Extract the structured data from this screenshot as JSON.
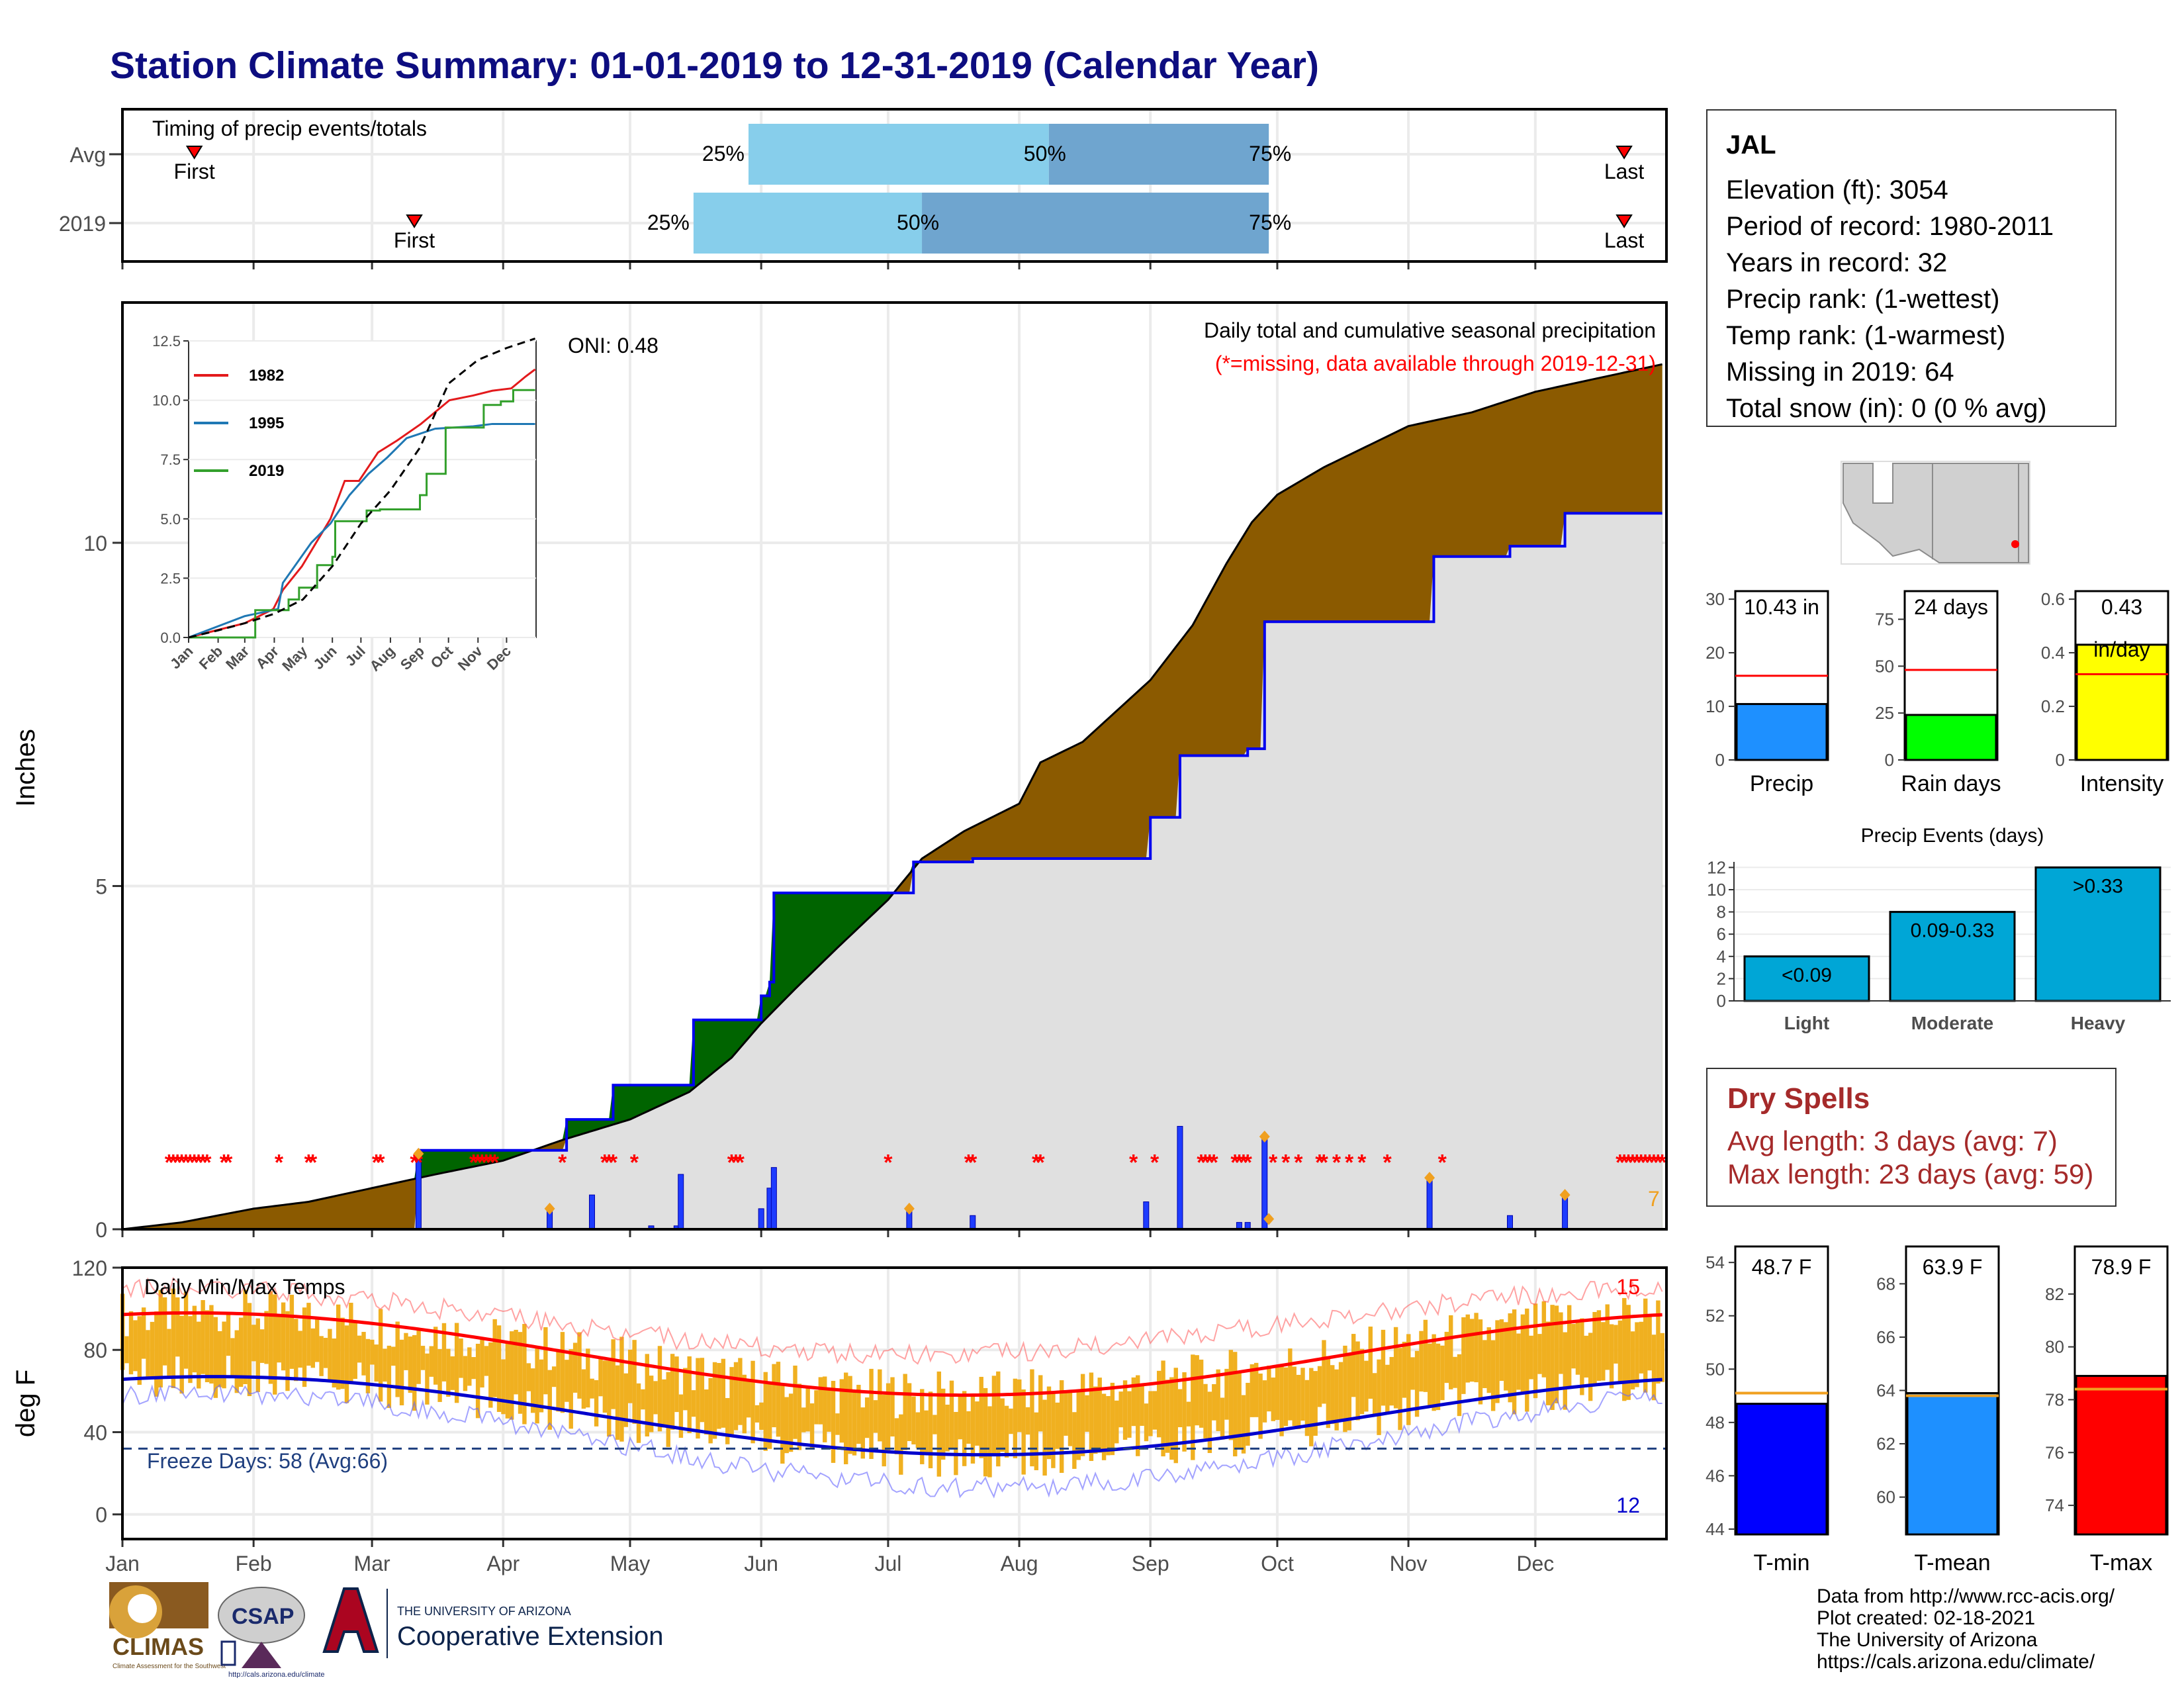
{
  "page_title": "Station Climate Summary: 01-01-2019 to 12-31-2019 (Calendar Year)",
  "station": {
    "name": "JAL",
    "rows": [
      "Elevation (ft): 3054",
      "Period of record: 1980-2011",
      "Years in record: 32",
      "Precip rank:  (1-wettest)",
      "Temp rank:  (1-warmest)",
      "Missing in 2019: 64",
      "Total snow (in): 0 (0 % avg)"
    ]
  },
  "dry_spells": {
    "title": "Dry Spells",
    "avg_length": "Avg length: 3 days (avg: 7)",
    "max_length": "Max length: 23 days (avg: 59)"
  },
  "credits": [
    "Data from http://www.rcc-acis.org/",
    "Plot created: 02-18-2021",
    "The University of Arizona",
    "https://cals.arizona.edu/climate/"
  ],
  "logos": {
    "climas": "CLIMAS",
    "climas_sub": "Climate Assessment for the Southwest",
    "csap": "CSAP",
    "csap_url": "http://cals.arizona.edu/climate",
    "ua_line1": "THE UNIVERSITY OF ARIZONA",
    "ua_line2": "Cooperative Extension"
  },
  "colors": {
    "title": "#0d0d80",
    "precip_surplus": "#006400",
    "precip_deficit": "#8b5a00",
    "avg_cumulative": "#e0e0e0",
    "daily_precip_bar": "#1e3cff",
    "missing_marker": "#ff0000",
    "temp_bar": "#f0b020",
    "avg_max_line": "#ff0000",
    "avg_min_line": "#0000cc",
    "tmin": "#0000ff",
    "tmean": "#1e90ff",
    "tmax": "#ff0000",
    "precip_fill": "#1e90ff",
    "raindays_fill": "#00ff00",
    "intensity_fill": "#ffff00",
    "events_fill": "#00a6d6",
    "timing_light": "#87ceeb",
    "timing_dark": "#6fa5cf",
    "dry_spells": "#a52a2a"
  },
  "chart_data": [
    {
      "id": "timing",
      "type": "bar",
      "title": "Timing of precip events/totals",
      "x_axis": "day of year",
      "rows": [
        {
          "label": "Avg",
          "first_doy": 18,
          "q25_doy": 149,
          "q50_doy": 220,
          "q75_doy": 272,
          "last_doy": 356,
          "first_label": "First",
          "last_label": "Last",
          "q25_label": "25%",
          "q50_label": "50%",
          "q75_label": "75%"
        },
        {
          "label": "2019",
          "first_doy": 70,
          "q25_doy": 136,
          "q50_doy": 190,
          "q75_doy": 272,
          "last_doy": 356,
          "first_label": "First",
          "last_label": "Last",
          "q25_label": "25%",
          "q50_label": "50%",
          "q75_label": "75%"
        }
      ]
    },
    {
      "id": "precip_main",
      "type": "area",
      "title": "Daily total and cumulative seasonal precipitation",
      "subtitle": "(*=missing, data available through 2019-12-31)",
      "annotation": "ONI: 0.48",
      "ylabel": "Inches",
      "ylim": [
        0,
        13.5
      ],
      "yticks": [
        0,
        5,
        10
      ],
      "months": [
        "Jan",
        "Feb",
        "Mar",
        "Apr",
        "May",
        "Jun",
        "Jul",
        "Aug",
        "Sep",
        "Oct",
        "Nov",
        "Dec"
      ],
      "month_start_doy": [
        1,
        32,
        60,
        91,
        121,
        152,
        182,
        213,
        244,
        274,
        305,
        335
      ],
      "avg_cumulative": [
        [
          1,
          0
        ],
        [
          15,
          0.1
        ],
        [
          32,
          0.3
        ],
        [
          45,
          0.4
        ],
        [
          60,
          0.6
        ],
        [
          75,
          0.8
        ],
        [
          91,
          1.0
        ],
        [
          105,
          1.3
        ],
        [
          121,
          1.6
        ],
        [
          135,
          2.0
        ],
        [
          145,
          2.5
        ],
        [
          152,
          3.0
        ],
        [
          160,
          3.5
        ],
        [
          170,
          4.1
        ],
        [
          182,
          4.8
        ],
        [
          190,
          5.4
        ],
        [
          200,
          5.8
        ],
        [
          213,
          6.2
        ],
        [
          218,
          6.8
        ],
        [
          228,
          7.1
        ],
        [
          244,
          8.0
        ],
        [
          254,
          8.8
        ],
        [
          262,
          9.7
        ],
        [
          268,
          10.3
        ],
        [
          274,
          10.7
        ],
        [
          285,
          11.1
        ],
        [
          305,
          11.7
        ],
        [
          320,
          11.9
        ],
        [
          335,
          12.2
        ],
        [
          350,
          12.4
        ],
        [
          365,
          12.6
        ]
      ],
      "cumulative_2019": [
        [
          1,
          0
        ],
        [
          70,
          0
        ],
        [
          71,
          1.15
        ],
        [
          105,
          1.15
        ],
        [
          106,
          1.6
        ],
        [
          116,
          1.6
        ],
        [
          117,
          2.1
        ],
        [
          135,
          2.1
        ],
        [
          136,
          3.05
        ],
        [
          151,
          3.05
        ],
        [
          152,
          3.4
        ],
        [
          154,
          3.6
        ],
        [
          155,
          4.9
        ],
        [
          187,
          4.9
        ],
        [
          188,
          5.35
        ],
        [
          201,
          5.35
        ],
        [
          202,
          5.4
        ],
        [
          243,
          5.4
        ],
        [
          244,
          6.0
        ],
        [
          250,
          6.0
        ],
        [
          251,
          6.9
        ],
        [
          266,
          6.9
        ],
        [
          267,
          7.0
        ],
        [
          270,
          7.0
        ],
        [
          271,
          8.85
        ],
        [
          310,
          8.85
        ],
        [
          311,
          9.8
        ],
        [
          328,
          9.8
        ],
        [
          329,
          9.95
        ],
        [
          341,
          9.95
        ],
        [
          342,
          10.43
        ],
        [
          365,
          10.43
        ]
      ],
      "daily_precip": [
        [
          71,
          1.1
        ],
        [
          102,
          0.3
        ],
        [
          112,
          0.5
        ],
        [
          126,
          0.05
        ],
        [
          132,
          0.05
        ],
        [
          133,
          0.8
        ],
        [
          152,
          0.3
        ],
        [
          154,
          0.6
        ],
        [
          155,
          0.9
        ],
        [
          187,
          0.3
        ],
        [
          202,
          0.2
        ],
        [
          243,
          0.4
        ],
        [
          251,
          1.5
        ],
        [
          265,
          0.1
        ],
        [
          267,
          0.1
        ],
        [
          271,
          1.35
        ],
        [
          310,
          0.75
        ],
        [
          329,
          0.2
        ],
        [
          342,
          0.5
        ]
      ],
      "missing_days": [
        12,
        13,
        14,
        15,
        16,
        17,
        18,
        19,
        20,
        21,
        25,
        26,
        38,
        45,
        46,
        61,
        62,
        70,
        71,
        84,
        85,
        86,
        87,
        88,
        89,
        105,
        115,
        116,
        117,
        122,
        145,
        146,
        147,
        182,
        201,
        202,
        217,
        218,
        240,
        245,
        256,
        257,
        258,
        259,
        264,
        265,
        266,
        267,
        273,
        276,
        279,
        284,
        285,
        288,
        291,
        294,
        300,
        313,
        355,
        356,
        357,
        358,
        359,
        360,
        361,
        362,
        363,
        364,
        365
      ],
      "orange_markers": [
        [
          71,
          1.1
        ],
        [
          102,
          0.3
        ],
        [
          187,
          0.3
        ],
        [
          271,
          1.35
        ],
        [
          272,
          0.15
        ],
        [
          310,
          0.75
        ],
        [
          342,
          0.5
        ]
      ],
      "orange_label": "7"
    },
    {
      "id": "precip_inset",
      "type": "line",
      "ylim": [
        0,
        12.5
      ],
      "yticks": [
        0.0,
        2.5,
        5.0,
        7.5,
        10.0,
        12.5
      ],
      "months": [
        "Jan",
        "Feb",
        "Mar",
        "Apr",
        "May",
        "Jun",
        "Jul",
        "Aug",
        "Sep",
        "Oct",
        "Nov",
        "Dec"
      ],
      "series": [
        {
          "name": "1982",
          "color": "#e31a1c",
          "values": [
            [
              1,
              0
            ],
            [
              30,
              0.3
            ],
            [
              60,
              0.6
            ],
            [
              90,
              1.2
            ],
            [
              100,
              2.0
            ],
            [
              120,
              3.0
            ],
            [
              150,
              5.0
            ],
            [
              165,
              6.6
            ],
            [
              180,
              6.6
            ],
            [
              200,
              7.8
            ],
            [
              220,
              8.3
            ],
            [
              245,
              9.0
            ],
            [
              275,
              10.0
            ],
            [
              300,
              10.2
            ],
            [
              320,
              10.4
            ],
            [
              340,
              10.5
            ],
            [
              355,
              11.0
            ],
            [
              365,
              11.3
            ]
          ]
        },
        {
          "name": "1995",
          "color": "#1f78b4",
          "values": [
            [
              1,
              0
            ],
            [
              60,
              0.9
            ],
            [
              95,
              1.2
            ],
            [
              100,
              2.3
            ],
            [
              130,
              4.0
            ],
            [
              150,
              4.8
            ],
            [
              170,
              6.0
            ],
            [
              190,
              6.9
            ],
            [
              210,
              7.6
            ],
            [
              230,
              8.4
            ],
            [
              260,
              8.8
            ],
            [
              300,
              8.9
            ],
            [
              320,
              9.0
            ],
            [
              365,
              9.0
            ]
          ]
        },
        {
          "name": "2019",
          "color": "#33a02c",
          "values": [
            [
              1,
              0
            ],
            [
              70,
              0
            ],
            [
              71,
              1.15
            ],
            [
              105,
              1.15
            ],
            [
              106,
              1.6
            ],
            [
              117,
              2.1
            ],
            [
              136,
              3.05
            ],
            [
              152,
              3.4
            ],
            [
              155,
              4.9
            ],
            [
              188,
              5.35
            ],
            [
              202,
              5.4
            ],
            [
              244,
              6.0
            ],
            [
              251,
              6.9
            ],
            [
              271,
              8.85
            ],
            [
              311,
              9.8
            ],
            [
              329,
              9.95
            ],
            [
              342,
              10.43
            ],
            [
              365,
              10.43
            ]
          ]
        },
        {
          "name": "avg",
          "color": "#000000",
          "dashed": true,
          "values": [
            [
              1,
              0
            ],
            [
              32,
              0.3
            ],
            [
              60,
              0.6
            ],
            [
              91,
              1.0
            ],
            [
              121,
              1.6
            ],
            [
              152,
              3.0
            ],
            [
              182,
              4.8
            ],
            [
              213,
              6.2
            ],
            [
              244,
              8.0
            ],
            [
              274,
              10.7
            ],
            [
              305,
              11.7
            ],
            [
              335,
              12.2
            ],
            [
              365,
              12.6
            ]
          ]
        }
      ]
    },
    {
      "id": "temps",
      "type": "bar",
      "title": "Daily Min/Max Temps",
      "ylabel": "deg F",
      "ylim": [
        -12,
        120
      ],
      "yticks": [
        0,
        40,
        80,
        120
      ],
      "freeze_label": "Freeze Days: 58 (Avg:66)",
      "freeze_line": 32,
      "record_high_count": "15",
      "record_low_count": "12",
      "avg_max": {
        "amp": 20,
        "mean": 78,
        "peak_doy": 200
      },
      "avg_min": {
        "amp": 19,
        "mean": 48,
        "peak_doy": 205
      },
      "record_max": {
        "amp": 16,
        "mean": 94,
        "peak_doy": 190
      },
      "record_min": {
        "amp": 23,
        "mean": 36,
        "peak_doy": 205
      }
    },
    {
      "id": "precip_summary",
      "type": "bar",
      "panels": [
        {
          "label": "Precip",
          "value": 10.43,
          "avg": 15.7,
          "ylim": [
            0,
            31.5
          ],
          "yticks": [
            0,
            10,
            20,
            30
          ],
          "value_label": "10.43 in"
        },
        {
          "label": "Rain days",
          "value": 24,
          "avg": 48,
          "ylim": [
            0,
            90
          ],
          "yticks": [
            0,
            25,
            50,
            75
          ],
          "value_label": "24 days"
        },
        {
          "label": "Intensity",
          "value": 0.43,
          "avg": 0.32,
          "ylim": [
            0,
            0.63
          ],
          "yticks": [
            0.0,
            0.2,
            0.4,
            0.6
          ],
          "value_label": "0.43",
          "value_unit": "in/day"
        }
      ]
    },
    {
      "id": "precip_events",
      "type": "bar",
      "title": "Precip Events (days)",
      "categories": [
        "Light",
        "Moderate",
        "Heavy"
      ],
      "values": [
        4,
        8,
        12
      ],
      "bar_labels": [
        "<0.09",
        "0.09-0.33",
        ">0.33"
      ],
      "ylim": [
        0,
        12.5
      ],
      "yticks": [
        0,
        2,
        4,
        6,
        8,
        10,
        12
      ]
    },
    {
      "id": "temp_summary",
      "type": "bar",
      "panels": [
        {
          "label": "T-min",
          "value": 48.7,
          "avg": 49.1,
          "ylim": [
            43.8,
            54.6
          ],
          "yticks": [
            44,
            46,
            48,
            50,
            52,
            54
          ],
          "value_label": "48.7 F"
        },
        {
          "label": "T-mean",
          "value": 63.9,
          "avg": 63.8,
          "ylim": [
            58.6,
            69.4
          ],
          "yticks": [
            60,
            62,
            64,
            66,
            68
          ],
          "value_label": "63.9 F"
        },
        {
          "label": "T-max",
          "value": 78.9,
          "avg": 78.4,
          "ylim": [
            72.9,
            83.8
          ],
          "yticks": [
            74,
            76,
            78,
            80,
            82
          ],
          "value_label": "78.9 F"
        }
      ]
    },
    {
      "id": "location_map",
      "type": "other",
      "note": "Locator map of Arizona/New Mexico with station dot"
    }
  ]
}
